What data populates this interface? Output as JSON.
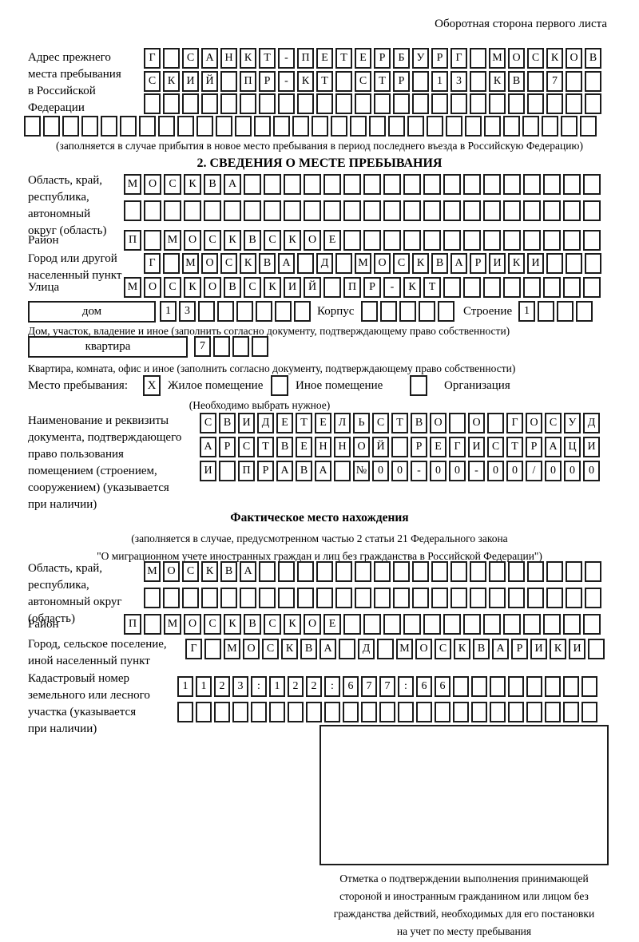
{
  "header_note": "Оборотная сторона первого листа",
  "prev_address": {
    "label": "Адрес прежнего\nместа пребывания\nв Российской\nФедерации",
    "rows": [
      {
        "len": 24,
        "text": "Г САНКТ-ПЕТЕРБУРГ МОСКОВ"
      },
      {
        "len": 24,
        "text": "СКИЙ ПР-КТ СТР 13 КВ 7"
      },
      {
        "len": 24,
        "text": ""
      },
      {
        "len": 30,
        "text": ""
      }
    ],
    "note": "(заполняется в случае прибытия в новое место пребывания в период последнего въезда в Российскую Федерацию)"
  },
  "section2": {
    "title": "2. СВЕДЕНИЯ О МЕСТЕ ПРЕБЫВАНИЯ",
    "region": {
      "label": "Область, край,\nреспублика,\nавтономный\nокруг (область)",
      "rows": [
        {
          "len": 24,
          "text": "МОСКВА"
        },
        {
          "len": 24,
          "text": ""
        }
      ]
    },
    "district": {
      "label": "Район",
      "row": {
        "len": 24,
        "text": "П МОСКВСКОЕ"
      }
    },
    "city": {
      "label": "Город или другой\nнаселенный пункт",
      "row": {
        "len": 24,
        "text": "Г МОСКВА Д МОСКВАРИКИ"
      }
    },
    "street": {
      "label": "Улица",
      "row": {
        "len": 24,
        "text": "МОСКОВСКИЙ ПР-КТ"
      }
    },
    "house": {
      "box_label": "дом",
      "row": {
        "len": 8,
        "text": "13"
      },
      "korpus_label": "Корпус",
      "korpus_row": {
        "len": 5,
        "text": ""
      },
      "stroenie_label": "Строение",
      "stroenie_row": {
        "len": 4,
        "text": "1"
      },
      "note": "Дом, участок, владение и иное (заполнить согласно документу, подтверждающему право собственности)"
    },
    "apartment": {
      "box_label": "квартира",
      "row": {
        "len": 4,
        "text": "7"
      },
      "note": "Квартира, комната, офис и иное (заполнить согласно документу, подтверждающему право собственности)"
    },
    "stay_type": {
      "label": "Место пребывания:",
      "options": [
        {
          "label": "Жилое помещение",
          "checked": "X"
        },
        {
          "label": "Иное помещение",
          "checked": ""
        },
        {
          "label": "Организация",
          "checked": ""
        }
      ],
      "note": "(Необходимо выбрать нужное)"
    },
    "document": {
      "label": "Наименование и реквизиты\nдокумента, подтверждающего\nправо пользования\nпомещением (строением,\nсооружением) (указывается\nпри наличии)",
      "rows": [
        {
          "len": 21,
          "text": "СВИДЕТЕЛЬСТВО О ГОСУД"
        },
        {
          "len": 21,
          "text": "АРСТВЕННОЙ РЕГИСТРАЦИ"
        },
        {
          "len": 21,
          "text": "И ПРАВА №00-00-00/000"
        }
      ]
    }
  },
  "actual_location": {
    "title": "Фактическое место нахождения",
    "note": "(заполняется в случае, предусмотренном частью 2 статьи 21 Федерального закона\n\"О миграционном учете иностранных граждан и лиц без гражданства в Российской Федерации\")",
    "region": {
      "label": "Область, край,\nреспублика,\nавтономный округ\n(область)",
      "rows": [
        {
          "len": 24,
          "text": "МОСКВА"
        },
        {
          "len": 24,
          "text": ""
        }
      ]
    },
    "district": {
      "label": "Район",
      "row": {
        "len": 24,
        "text": "П МОСКВСКОЕ"
      }
    },
    "city": {
      "label": "Город, сельское поселение,\nиной населенный пункт",
      "row": {
        "len": 22,
        "text": "Г МОСКВА Д МОСКВАРИКИ"
      }
    },
    "cadastral": {
      "label": "Кадастровый номер\nземельного или лесного\nучастка (указывается\nпри наличии)",
      "rows": [
        {
          "len": 23,
          "text": "1123:122:677:66"
        },
        {
          "len": 23,
          "text": ""
        }
      ]
    },
    "stamp_note": "Отметка о подтверждении выполнения принимающей\nстороной и иностранным гражданином или лицом без\nгражданства действий, необходимых для его постановки\nна учет по месту пребывания"
  }
}
